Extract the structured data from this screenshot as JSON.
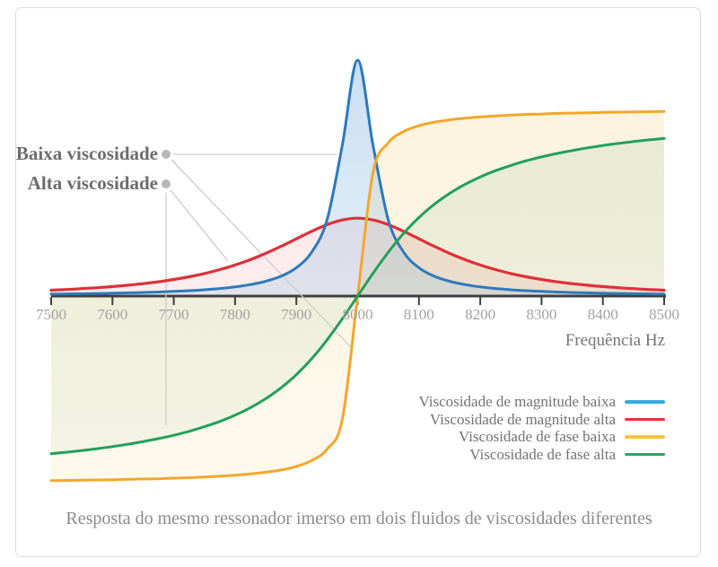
{
  "annotations": {
    "low_viscosity_label": "Baixa viscosidade",
    "high_viscosity_label": "Alta viscosidade"
  },
  "caption": "Resposta do mesmo ressonador imerso em dois fluidos de viscosidades diferentes",
  "chart_data": {
    "type": "line",
    "title": "",
    "xlabel": "Frequência Hz",
    "ylabel": "",
    "xlim": [
      7500,
      8500
    ],
    "x_ticks": [
      7500,
      7600,
      7700,
      7800,
      7900,
      8000,
      8100,
      8200,
      8300,
      8400,
      8500
    ],
    "resonance_frequency_hz": 8000,
    "grid": false,
    "legend_position": "bottom-right",
    "x_start": 7500,
    "x_step": 25,
    "series": [
      {
        "name": "Viscosidade de magnitude baixa",
        "kind": "magnitude",
        "unit": "normalized amplitude",
        "color": "#2E79BB",
        "swatch_color": "#35AAE0",
        "fill_top": "rgba(110,170,220,0.38)",
        "fill_bottom": "rgba(150,195,232,0.10)",
        "width": 3,
        "values": [
          0.0084,
          0.0091,
          0.01,
          0.011,
          0.0121,
          0.0135,
          0.0152,
          0.0172,
          0.0197,
          0.0228,
          0.0268,
          0.032,
          0.0388,
          0.0487,
          0.0627,
          0.084,
          0.12,
          0.186,
          0.323,
          0.639,
          1.0,
          0.639,
          0.323,
          0.186,
          0.12,
          0.084,
          0.0627,
          0.0487,
          0.0388,
          0.032,
          0.0268,
          0.0228,
          0.0197,
          0.0172,
          0.0152,
          0.0135,
          0.0121,
          0.011,
          0.01,
          0.0091,
          0.0084
        ]
      },
      {
        "name": "Viscosidade de magnitude alta",
        "kind": "magnitude",
        "unit": "normalized amplitude",
        "color": "#DE3038",
        "swatch_color": "#E8343D",
        "fill_top": "rgba(225,80,85,0.16)",
        "fill_bottom": "rgba(225,80,85,0.05)",
        "width": 3.2,
        "values": [
          0.0249,
          0.0279,
          0.0314,
          0.0354,
          0.0402,
          0.0459,
          0.0526,
          0.0606,
          0.0702,
          0.0817,
          0.0955,
          0.112,
          0.1315,
          0.1544,
          0.1809,
          0.2107,
          0.2427,
          0.2745,
          0.3025,
          0.3226,
          0.33,
          0.3226,
          0.3025,
          0.2745,
          0.2427,
          0.2107,
          0.1809,
          0.1544,
          0.1315,
          0.112,
          0.0955,
          0.0817,
          0.0702,
          0.0606,
          0.0526,
          0.0459,
          0.0402,
          0.0354,
          0.0314,
          0.0279,
          0.0249
        ]
      },
      {
        "name": "Viscosidade de fase baixa",
        "kind": "phase",
        "unit": "degrees",
        "color": "#F3A72B",
        "swatch_color": "#F6C441",
        "fill_top": "rgba(243,196,83,0.20)",
        "fill_bottom": "rgba(243,196,83,0.10)",
        "width": 3,
        "values": [
          -88.3,
          -88.2,
          -88.1,
          -88.0,
          -87.9,
          -87.7,
          -87.5,
          -87.4,
          -87.1,
          -86.9,
          -86.6,
          -86.2,
          -85.7,
          -85.1,
          -84.3,
          -83.2,
          -81.5,
          -78.7,
          -73.3,
          -59.0,
          0,
          59.0,
          73.3,
          78.7,
          81.5,
          83.2,
          84.3,
          85.1,
          85.7,
          86.2,
          86.6,
          86.9,
          87.1,
          87.4,
          87.5,
          87.7,
          87.9,
          88.0,
          88.1,
          88.2,
          88.3
        ]
      },
      {
        "name": "Viscosidade de fase alta",
        "kind": "phase",
        "unit": "degrees",
        "color": "#22A05A",
        "swatch_color": "#2BA562",
        "fill_top": "rgba(110,175,120,0.16)",
        "fill_bottom": "rgba(110,175,120,0.06)",
        "width": 3,
        "values": [
          -75.4,
          -74.7,
          -73.9,
          -73.0,
          -72.0,
          -70.9,
          -69.6,
          -68.2,
          -66.6,
          -64.7,
          -62.5,
          -60.0,
          -57.0,
          -53.4,
          -49.1,
          -43.9,
          -37.6,
          -30.0,
          -21.0,
          -10.9,
          0,
          10.9,
          21.0,
          30.0,
          37.6,
          43.9,
          49.1,
          53.4,
          57.0,
          60.0,
          62.5,
          64.7,
          66.6,
          68.2,
          69.6,
          70.9,
          72.0,
          73.0,
          73.9,
          74.7,
          75.4
        ]
      }
    ]
  }
}
